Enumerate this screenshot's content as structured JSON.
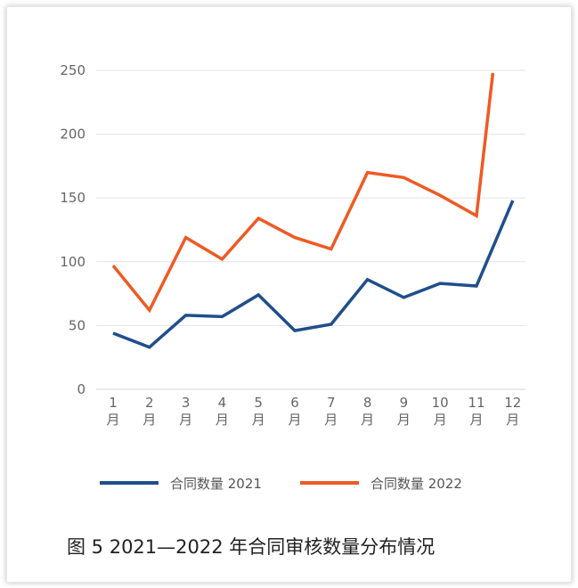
{
  "caption": "图 5   2021—2022 年合同审核数量分布情况",
  "chart_data": {
    "type": "line",
    "categories": [
      "1\n月",
      "2\n月",
      "3\n月",
      "4\n月",
      "5\n月",
      "6\n月",
      "7\n月",
      "8\n月",
      "9\n月",
      "10\n月",
      "11\n月",
      "12\n月"
    ],
    "series": [
      {
        "name": "合同数量 2021",
        "color": "#1f4e8c",
        "x": [
          1,
          2,
          3,
          4,
          5,
          6,
          7,
          8,
          9,
          10,
          11,
          12
        ],
        "values": [
          44,
          33,
          58,
          57,
          74,
          46,
          51,
          86,
          72,
          83,
          81,
          148
        ]
      },
      {
        "name": "合同数量 2022",
        "color": "#ee5a24",
        "x": [
          1,
          2,
          3,
          4,
          5,
          6,
          7,
          8,
          9,
          10,
          11,
          11.45
        ],
        "values": [
          97,
          62,
          119,
          102,
          134,
          119,
          110,
          170,
          166,
          152,
          136,
          248
        ]
      }
    ],
    "ylim": [
      0,
      250
    ],
    "yticks": [
      0,
      50,
      100,
      150,
      200,
      250
    ],
    "grid": true,
    "legend": "bottom"
  }
}
